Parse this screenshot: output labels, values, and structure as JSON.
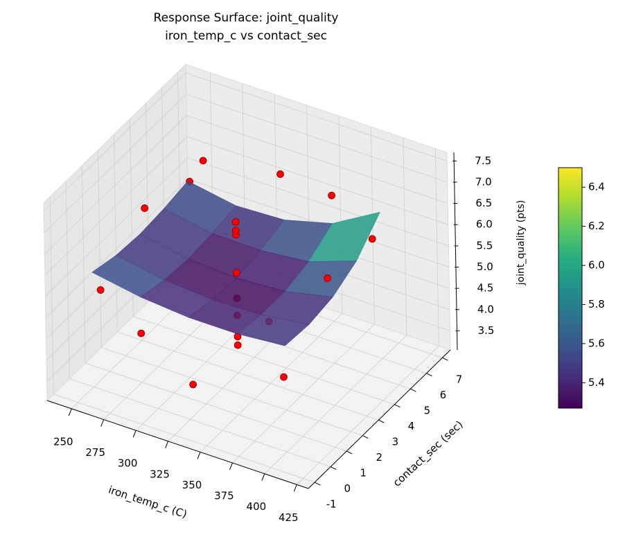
{
  "chart_data": {
    "type": "surface3d",
    "title": "Response Surface: joint_quality",
    "subtitle": "iron_temp_c vs contact_sec",
    "xlabel": "iron_temp_c (C)",
    "ylabel": "contact_sec (sec)",
    "zlabel": "joint_quality (pts)",
    "xlim": [
      231,
      434
    ],
    "ylim": [
      -1.4,
      7.5
    ],
    "zlim": [
      3.05,
      7.7
    ],
    "xticks": [
      250,
      275,
      300,
      325,
      350,
      375,
      400,
      425
    ],
    "yticks": [
      -1,
      0,
      1,
      2,
      3,
      4,
      5,
      6,
      7
    ],
    "zticks": [
      3.5,
      {
        "value": 4,
        "label": "4.0"
      },
      4.5,
      {
        "value": 5,
        "label": "5.0"
      },
      5.5,
      {
        "value": 6,
        "label": "6.0"
      },
      6.5,
      {
        "value": 7,
        "label": "7.0"
      },
      7.5
    ],
    "grid": true,
    "surface": {
      "cmap": "viridis",
      "alpha": 0.85,
      "x": [
        250,
        287.5,
        325,
        362.5,
        400
      ],
      "y": [
        0,
        1.5,
        3,
        4.5,
        6
      ],
      "z": [
        [
          5.75,
          5.55,
          5.45,
          5.45,
          5.55
        ],
        [
          5.6,
          5.4,
          5.32,
          5.35,
          5.5
        ],
        [
          5.55,
          5.35,
          5.28,
          5.35,
          5.6
        ],
        [
          5.6,
          5.4,
          5.38,
          5.5,
          5.9
        ],
        [
          5.7,
          5.5,
          5.55,
          5.85,
          6.5
        ]
      ]
    },
    "colorbar": {
      "clim": [
        5.27,
        6.5
      ],
      "ticks": [
        5.4,
        5.6,
        5.8,
        {
          "value": 6,
          "label": "6.0"
        },
        6.2,
        6.4
      ]
    },
    "points": {
      "color": "#ff0000",
      "edgecolor": "#8b0000",
      "x": [
        275,
        375,
        275,
        375,
        254,
        396,
        325,
        325,
        325,
        325,
        325,
        325,
        325,
        325,
        325,
        254,
        396,
        396,
        254,
        325
      ],
      "y": [
        1,
        1,
        5,
        5,
        3,
        3,
        0.2,
        5.8,
        3,
        3,
        3,
        3,
        3,
        3,
        3,
        0.2,
        5.8,
        0.2,
        5.8,
        3
      ],
      "z": [
        4.2,
        5.5,
        6.8,
        7.0,
        6.2,
        6.0,
        3.8,
        6.7,
        6.6,
        6.4,
        6.3,
        5.4,
        4.4,
        3.9,
        3.7,
        5.3,
        5.9,
        4.7,
        5.8,
        4.8
      ]
    }
  }
}
